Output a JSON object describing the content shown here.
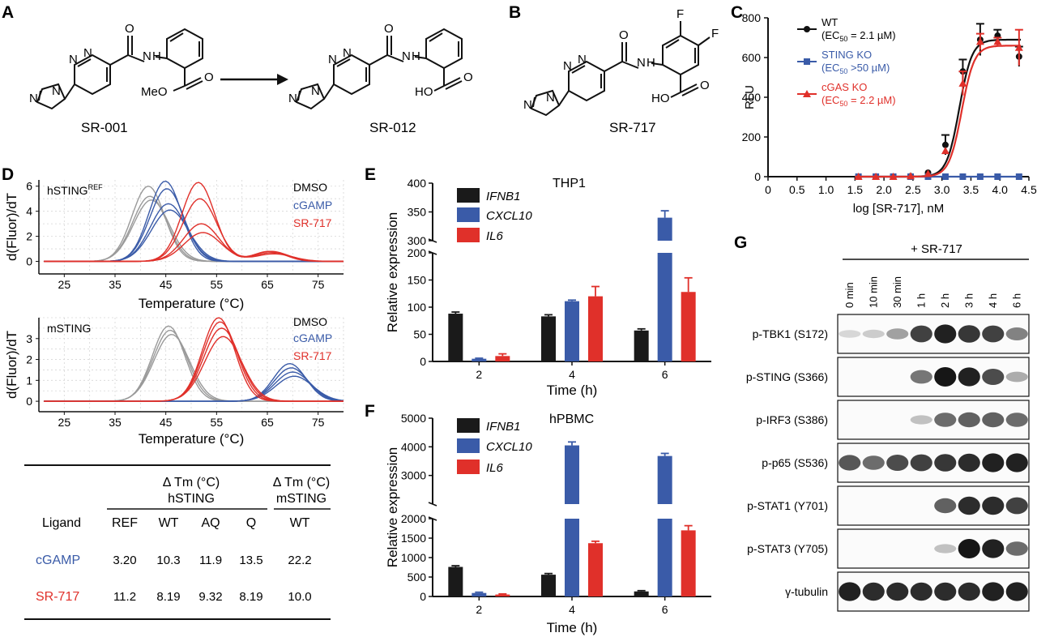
{
  "panels": {
    "A": {
      "label": "A",
      "compound1": {
        "name": "SR-001",
        "N1": "N",
        "N2": "N",
        "N3": "N",
        "N4": "N",
        "NH": "N",
        "H": "H",
        "O1": "O",
        "O2": "O",
        "ester": "MeO"
      },
      "compound2": {
        "name": "SR-012",
        "N1": "N",
        "N2": "N",
        "N3": "N",
        "N4": "N",
        "NH": "N",
        "H": "H",
        "O1": "O",
        "O2": "O",
        "acid": "HO"
      }
    },
    "B": {
      "label": "B",
      "compound": {
        "name": "SR-717",
        "N1": "N",
        "N2": "N",
        "N3": "N",
        "N4": "N",
        "NH": "N",
        "H": "H",
        "O1": "O",
        "O2": "O",
        "acid": "HO",
        "F1": "F",
        "F2": "F"
      }
    },
    "C": {
      "label": "C"
    },
    "D": {
      "label": "D"
    },
    "E": {
      "label": "E"
    },
    "F": {
      "label": "F"
    },
    "G": {
      "label": "G"
    }
  },
  "colors": {
    "wt": "#111111",
    "sting_ko": "#3a5ba8",
    "cgas_ko": "#e0302a",
    "dmso": "#9a9a9a",
    "cgamp": "#3a5ba8",
    "sr717": "#e0302a",
    "ifnb1": "#1a1a1a",
    "cxcl10": "#3a5ba8",
    "il6": "#e0302a"
  },
  "chart_data": [
    {
      "id": "C",
      "type": "line",
      "xlabel": "log [SR-717], nM",
      "ylabel": "RLU",
      "xlim": [
        0,
        4.5
      ],
      "ylim": [
        0,
        800
      ],
      "xticks": [
        "0",
        "0.5",
        "1.0",
        "1.5",
        "2.0",
        "2.5",
        "3.0",
        "3.5",
        "4.0",
        "4.5"
      ],
      "yticks": [
        "0",
        "200",
        "400",
        "600",
        "800"
      ],
      "x": [
        1.56,
        1.86,
        2.16,
        2.46,
        2.76,
        3.06,
        3.36,
        3.66,
        3.96,
        4.33
      ],
      "legend": [
        {
          "name": "WT",
          "ec50": "(EC",
          "sub": "50",
          "ec50_rest": " = 2.1 µM)"
        },
        {
          "name": "STING KO",
          "ec50": "(EC",
          "sub": "50",
          "ec50_rest": " >50 µM)"
        },
        {
          "name": "cGAS KO",
          "ec50": "(EC",
          "sub": "50",
          "ec50_rest": " = 2.2 µM)"
        }
      ],
      "series": [
        {
          "name": "WT",
          "values": [
            0,
            0,
            0,
            2,
            20,
            160,
            530,
            690,
            710,
            605
          ],
          "errors": [
            0,
            0,
            0,
            0,
            0,
            50,
            60,
            80,
            30,
            50
          ]
        },
        {
          "name": "STING KO",
          "values": [
            0,
            0,
            0,
            0,
            0,
            0,
            0,
            0,
            0,
            0
          ],
          "errors": [
            0,
            0,
            0,
            0,
            0,
            0,
            0,
            0,
            0,
            0
          ]
        },
        {
          "name": "cGAS KO",
          "values": [
            0,
            0,
            0,
            3,
            15,
            130,
            470,
            680,
            680,
            650
          ],
          "errors": [
            0,
            0,
            0,
            0,
            0,
            0,
            60,
            40,
            20,
            90
          ]
        }
      ]
    },
    {
      "id": "D-top",
      "type": "line",
      "tag": "hSTING",
      "tag_sup": "REF",
      "xlabel": "Temperature (°C)",
      "ylabel": "d(Fluor)/dT",
      "xlim": [
        20,
        80
      ],
      "ylim": [
        -1,
        6.5
      ],
      "xticks": [
        "25",
        "35",
        "45",
        "55",
        "65",
        "75"
      ],
      "yticks": [
        "0",
        "2",
        "4",
        "6"
      ],
      "legend": [
        "DMSO",
        "cGAMP",
        "SR-717"
      ],
      "series": [
        {
          "name": "DMSO",
          "peaks": [
            {
              "center": 42,
              "heights": [
                6.0,
                5.2,
                4.9
              ]
            }
          ]
        },
        {
          "name": "cGAMP",
          "peaks": [
            {
              "center": 45.5,
              "heights": [
                6.4,
                5.8,
                4.6,
                4.1
              ]
            }
          ]
        },
        {
          "name": "SR-717",
          "peaks": [
            {
              "center": 52,
              "heights": [
                6.3,
                5.0,
                3.0,
                2.3
              ]
            },
            {
              "center": 66,
              "heights": [
                0.8,
                0.8,
                0.7,
                0.6
              ]
            }
          ]
        }
      ]
    },
    {
      "id": "D-bottom",
      "type": "line",
      "tag": "mSTING",
      "xlabel": "Temperature (°C)",
      "ylabel": "d(Fluor)/dT",
      "xlim": [
        20,
        80
      ],
      "ylim": [
        -0.5,
        4
      ],
      "xticks": [
        "25",
        "35",
        "45",
        "55",
        "65",
        "75"
      ],
      "yticks": [
        "0",
        "1",
        "2",
        "3"
      ],
      "legend": [
        "DMSO",
        "cGAMP",
        "SR-717"
      ],
      "series": [
        {
          "name": "DMSO",
          "peaks": [
            {
              "center": 46,
              "heights": [
                3.6,
                3.4,
                3.2
              ]
            }
          ]
        },
        {
          "name": "cGAMP",
          "peaks": [
            {
              "center": 70,
              "heights": [
                1.8,
                1.6,
                1.4,
                1.2
              ]
            }
          ]
        },
        {
          "name": "SR-717",
          "peaks": [
            {
              "center": 56,
              "heights": [
                4.0,
                3.8,
                3.5,
                3.1
              ]
            }
          ]
        }
      ]
    },
    {
      "id": "D-table",
      "type": "table",
      "group1_line1": "Δ Tm (°C)",
      "group1_line2": "hSTING",
      "group2_line1": "Δ Tm (°C)",
      "group2_line2": "mSTING",
      "columns": [
        "Ligand",
        "REF",
        "WT",
        "AQ",
        "Q",
        "WT"
      ],
      "rows": [
        {
          "ligand": "cGAMP",
          "values": [
            "3.20",
            "10.3",
            "11.9",
            "13.5",
            "22.2"
          ]
        },
        {
          "ligand": "SR-717",
          "values": [
            "11.2",
            "8.19",
            "9.32",
            "8.19",
            "10.0"
          ]
        }
      ]
    },
    {
      "id": "E",
      "type": "bar",
      "title": "THP1",
      "xlabel": "Time (h)",
      "ylabel": "Relative expression",
      "categories": [
        "2",
        "4",
        "6"
      ],
      "yticks_low": [
        "0",
        "50",
        "100",
        "150",
        "200"
      ],
      "yticks_high": [
        "300",
        "350",
        "400"
      ],
      "series": [
        {
          "name": "IFNB1",
          "values": [
            88,
            83,
            57
          ],
          "errors": [
            3,
            3,
            3
          ]
        },
        {
          "name": "CXCL10",
          "values": [
            5,
            111,
            340
          ],
          "errors": [
            1,
            2,
            12
          ]
        },
        {
          "name": "IL6",
          "values": [
            10,
            120,
            128
          ],
          "errors": [
            4,
            18,
            26
          ]
        }
      ]
    },
    {
      "id": "F",
      "type": "bar",
      "title": "hPBMC",
      "xlabel": "Time (h)",
      "ylabel": "Relative expression",
      "categories": [
        "2",
        "4",
        "6"
      ],
      "yticks_low": [
        "0",
        "500",
        "1000",
        "1500",
        "2000"
      ],
      "yticks_high": [
        "3000",
        "4000",
        "5000"
      ],
      "series": [
        {
          "name": "IFNB1",
          "values": [
            760,
            560,
            130
          ],
          "errors": [
            30,
            30,
            20
          ]
        },
        {
          "name": "CXCL10",
          "values": [
            90,
            4050,
            3680
          ],
          "errors": [
            20,
            120,
            90
          ]
        },
        {
          "name": "IL6",
          "values": [
            50,
            1370,
            1700
          ],
          "errors": [
            15,
            50,
            120
          ]
        }
      ]
    }
  ],
  "blot": {
    "treatment": "+ SR-717",
    "lanes": [
      "0 min",
      "10 min",
      "30 min",
      "1 h",
      "2 h",
      "3 h",
      "4 h",
      "6 h"
    ],
    "rows": [
      {
        "label": "p-TBK1 (S172)",
        "intensity": [
          0.1,
          0.15,
          0.35,
          0.8,
          0.95,
          0.85,
          0.8,
          0.5
        ]
      },
      {
        "label": "p-STING (S366)",
        "intensity": [
          0,
          0,
          0,
          0.55,
          1.0,
          0.95,
          0.75,
          0.3
        ]
      },
      {
        "label": "p-IRF3 (S386)",
        "intensity": [
          0,
          0,
          0,
          0.2,
          0.6,
          0.65,
          0.65,
          0.6
        ]
      },
      {
        "label": "p-p65 (S536)",
        "intensity": [
          0.7,
          0.6,
          0.75,
          0.8,
          0.85,
          0.9,
          0.95,
          0.95
        ]
      },
      {
        "label": "p-STAT1 (Y701)",
        "intensity": [
          0,
          0,
          0,
          0,
          0.65,
          0.9,
          0.9,
          0.8
        ]
      },
      {
        "label": "p-STAT3 (Y705)",
        "intensity": [
          0,
          0,
          0,
          0,
          0.2,
          1.0,
          0.95,
          0.6
        ]
      },
      {
        "label": "γ-tubulin",
        "intensity": [
          0.95,
          0.9,
          0.9,
          0.9,
          0.9,
          0.9,
          0.95,
          0.95
        ]
      }
    ]
  }
}
